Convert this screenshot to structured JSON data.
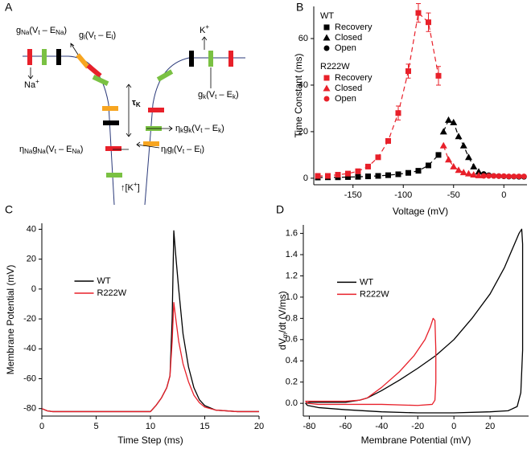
{
  "diagram": {
    "panel": "A",
    "labels": [
      [
        "g",
        "Na",
        "(V",
        "t",
        " – E",
        "Na",
        ")"
      ],
      [
        "Na",
        "+"
      ],
      [
        "g",
        "l",
        "(V",
        "t",
        " – E",
        "l",
        ")"
      ],
      [
        "K",
        "+"
      ],
      [
        "g",
        "k",
        "(V",
        "t",
        " – E",
        "k",
        ")"
      ],
      [
        "τ",
        "K"
      ],
      [
        "η",
        "k",
        "g",
        "k",
        "(V",
        "t",
        " – E",
        "k",
        ")"
      ],
      [
        "η",
        "Na",
        "g",
        "Na",
        "(V",
        "t",
        " – E",
        "Na",
        ")"
      ],
      [
        "η",
        "l",
        "g",
        "l",
        "(V",
        "t",
        " – E",
        "l",
        ")"
      ],
      [
        "↑[K",
        "+",
        "]"
      ]
    ]
  },
  "chart_data": [
    {
      "panel": "B",
      "type": "scatter",
      "xlabel": "Voltage (mV)",
      "ylabel": "Time Constant (ms)",
      "xlim": [
        -189,
        23
      ],
      "ylim": [
        -2.8,
        73.8
      ],
      "xticks": [
        -150,
        -100,
        -50,
        0
      ],
      "yticks": [
        0,
        20,
        40,
        60
      ],
      "legend": "upper-left",
      "groups": [
        {
          "name": "WT",
          "color": "#000000",
          "series": [
            {
              "name": "Recovery",
              "marker": "square",
              "line": "dashed",
              "x": [
                -185,
                -175,
                -165,
                -155,
                -145,
                -135,
                -125,
                -115,
                -105,
                -95,
                -85,
                -75,
                -65
              ],
              "values": [
                0.3,
                0.4,
                0.4,
                0.5,
                0.6,
                0.8,
                1,
                1.3,
                1.7,
                2.3,
                3.2,
                5.5,
                10
              ]
            },
            {
              "name": "Closed",
              "marker": "triangle",
              "line": "dashed",
              "x": [
                -60,
                -55,
                -50,
                -45,
                -40,
                -35,
                -30,
                -25
              ],
              "values": [
                20,
                25,
                24,
                18,
                14,
                9,
                5,
                2.8
              ]
            },
            {
              "name": "Open",
              "marker": "circle",
              "x": [
                -20,
                -15,
                -10,
                -5,
                0,
                5,
                10,
                15,
                20
              ],
              "values": [
                1.8,
                1.3,
                1,
                0.9,
                0.8,
                0.7,
                0.7,
                0.6,
                0.6
              ]
            }
          ]
        },
        {
          "name": "R222W",
          "color": "#e8202a",
          "series": [
            {
              "name": "Recovery",
              "marker": "square",
              "line": "dashed",
              "x": [
                -185,
                -175,
                -165,
                -155,
                -145,
                -135,
                -125,
                -115,
                -105,
                -95,
                -85,
                -75,
                -65
              ],
              "values": [
                1,
                1,
                1.5,
                2,
                3,
                5,
                9,
                16,
                28,
                46,
                71,
                67,
                44
              ],
              "errors": [
                null,
                null,
                null,
                null,
                null,
                null,
                null,
                null,
                3,
                3,
                4,
                4,
                4
              ]
            },
            {
              "name": "Closed",
              "marker": "triangle",
              "line": "dashed",
              "x": [
                -60,
                -55,
                -50,
                -45,
                -40,
                -35,
                -30,
                -25
              ],
              "values": [
                14,
                8,
                5,
                3.5,
                2.5,
                2,
                1.5,
                1.2
              ]
            },
            {
              "name": "Open",
              "marker": "circle",
              "x": [
                -20,
                -15,
                -10,
                -5,
                0,
                5,
                10,
                15,
                20
              ],
              "values": [
                1,
                1,
                1,
                0.9,
                0.9,
                0.8,
                0.8,
                0.8,
                0.8
              ]
            }
          ]
        }
      ]
    },
    {
      "panel": "C",
      "type": "line",
      "xlabel": "Time Step (ms)",
      "ylabel": "Membrane Potential (mV)",
      "xlim": [
        0,
        20
      ],
      "ylim": [
        -85,
        44
      ],
      "xticks": [
        0,
        5,
        10,
        15,
        20
      ],
      "yticks": [
        -80,
        -60,
        -40,
        -20,
        0,
        20,
        40
      ],
      "legend": "center-left",
      "x": [
        0,
        0.5,
        1,
        2,
        4,
        6,
        8,
        10,
        10.5,
        11,
        11.5,
        11.8,
        12,
        12.15,
        12.3,
        12.6,
        13,
        13.5,
        14,
        14.5,
        15,
        16,
        18,
        20
      ],
      "series": [
        {
          "name": "WT",
          "color": "#000000",
          "values": [
            -80,
            -81.5,
            -82,
            -82,
            -82,
            -82,
            -82,
            -82,
            -78,
            -73,
            -66,
            -58,
            -20,
            39,
            25,
            0,
            -30,
            -52,
            -66,
            -74,
            -78,
            -81,
            -82,
            -82
          ]
        },
        {
          "name": "R222W",
          "color": "#e8202a",
          "values": [
            -80,
            -81.5,
            -82,
            -82,
            -82,
            -82,
            -82,
            -82,
            -78,
            -73,
            -66,
            -58,
            -35,
            -9,
            -18,
            -35,
            -50,
            -62,
            -71,
            -76,
            -79,
            -81,
            -82,
            -82
          ]
        }
      ]
    },
    {
      "panel": "D",
      "type": "line",
      "xlabel": "Membrane Potential (mV)",
      "ylabel": [
        "dV",
        "m",
        "/dt (V/ms)"
      ],
      "xlim": [
        -83.3,
        41.3
      ],
      "ylim": [
        -0.12,
        1.68
      ],
      "xticks": [
        -80,
        -60,
        -40,
        -20,
        0,
        20
      ],
      "yticks": [
        {
          "value": 0,
          "label": "0.0"
        },
        0.2,
        0.4,
        0.6,
        0.8,
        {
          "value": 1,
          "label": "1.0"
        },
        1.2,
        1.4,
        1.6
      ],
      "legend": "center-left",
      "series": [
        {
          "name": "WT",
          "color": "#000000",
          "x": [
            -48,
            -40,
            -30,
            -20,
            -10,
            0,
            10,
            20,
            28,
            33,
            36,
            37.5,
            38,
            38,
            38,
            37,
            35,
            30,
            20,
            0,
            -20,
            -40,
            -60,
            -75,
            -81,
            -82,
            -80,
            -70,
            -60,
            -52,
            -48
          ],
          "values": [
            0.05,
            0.12,
            0.22,
            0.33,
            0.45,
            0.6,
            0.8,
            1.03,
            1.28,
            1.48,
            1.6,
            1.64,
            1.5,
            1,
            0.5,
            0.1,
            -0.03,
            -0.07,
            -0.08,
            -0.09,
            -0.09,
            -0.08,
            -0.06,
            -0.04,
            -0.02,
            0,
            0.01,
            0.01,
            0.01,
            0.03,
            0.05
          ]
        },
        {
          "name": "R222W",
          "color": "#e8202a",
          "x": [
            -48,
            -40,
            -30,
            -22,
            -16,
            -13,
            -11.5,
            -10.5,
            -10,
            -10,
            -10.5,
            -12,
            -20,
            -40,
            -60,
            -75,
            -81,
            -82,
            -75,
            -60,
            -52,
            -48
          ],
          "values": [
            0.05,
            0.15,
            0.3,
            0.45,
            0.6,
            0.72,
            0.8,
            0.78,
            0.5,
            0.2,
            0.03,
            -0.01,
            -0.02,
            -0.01,
            -0.01,
            -0.01,
            0,
            0.02,
            0.02,
            0.02,
            0.03,
            0.05
          ]
        }
      ]
    }
  ]
}
